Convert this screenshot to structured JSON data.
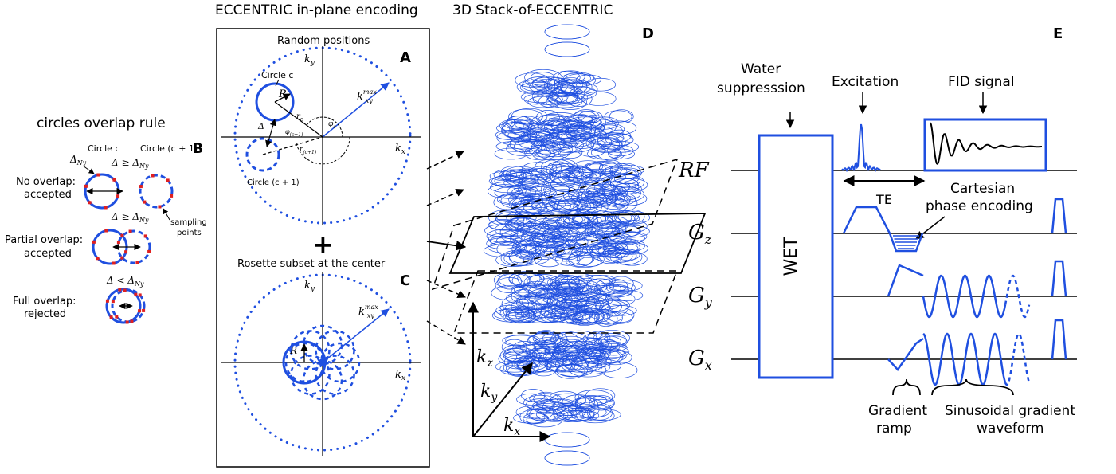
{
  "colors": {
    "accent": "#1f4fe0",
    "sample": "#e02020",
    "line": "#000000"
  },
  "titles": {
    "in_plane": "ECCENTRIC in-plane encoding",
    "stack": "3D Stack-of-ECCENTRIC"
  },
  "panels": {
    "a": "A",
    "b": "B",
    "c": "C",
    "d": "D",
    "e": "E"
  },
  "panel_a": {
    "caption": "Random positions",
    "ky": "k",
    "ky_sub": "y",
    "kx": "k",
    "kx_sub": "x",
    "kmax": "k",
    "kmax_sub": "xy",
    "kmax_sup": "max",
    "circle_c": "Circle c",
    "circle_c1": "Circle (c + 1)",
    "R": "R",
    "rc": "r",
    "rc_sub": "c",
    "rc1": "r",
    "rc1_sub": "(c+1)",
    "phic": "φ",
    "phic_sub": "c",
    "phic1": "φ",
    "phic1_sub": "(c+1)",
    "delta": "Δ"
  },
  "panel_b": {
    "title": "circles overlap rule",
    "circle_c": "Circle c",
    "circle_c1": "Circle (c + 1)",
    "delta_ny": "Δ",
    "delta_ny_sub": "Ny",
    "rules": [
      {
        "cond": "Δ ≥ Δ",
        "sub": "Ny",
        "line1": "No overlap:",
        "line2": "accepted"
      },
      {
        "cond": "Δ ≥ Δ",
        "sub": "Ny",
        "line1": "Partial overlap:",
        "line2": "accepted"
      },
      {
        "cond": "Δ < Δ",
        "sub": "Ny",
        "line1": "Full overlap:",
        "line2": "rejected"
      }
    ],
    "sampling1": "sampling",
    "sampling2": "points"
  },
  "plus": "+",
  "panel_c": {
    "caption": "Rosette subset at the center",
    "ky": "k",
    "ky_sub": "y",
    "kx": "k",
    "kx_sub": "x",
    "kmax": "k",
    "kmax_sub": "xy",
    "kmax_sup": "max",
    "R": "R"
  },
  "panel_d": {
    "kz": "k",
    "kz_sub": "z",
    "ky": "k",
    "ky_sub": "y",
    "kx": "k",
    "kx_sub": "x"
  },
  "panel_e": {
    "water1": "Water",
    "water2": "suppresssion",
    "excitation": "Excitation",
    "fid": "FID signal",
    "wet": "WET",
    "te": "TE",
    "cart1": "Cartesian",
    "cart2": "phase encoding",
    "rf": "RF",
    "gz": "G",
    "gz_sub": "z",
    "gy": "G",
    "gy_sub": "y",
    "gx": "G",
    "gx_sub": "x",
    "ramp1": "Gradient",
    "ramp2": "ramp",
    "sin1": "Sinusoidal gradient",
    "sin2": "waveform"
  }
}
